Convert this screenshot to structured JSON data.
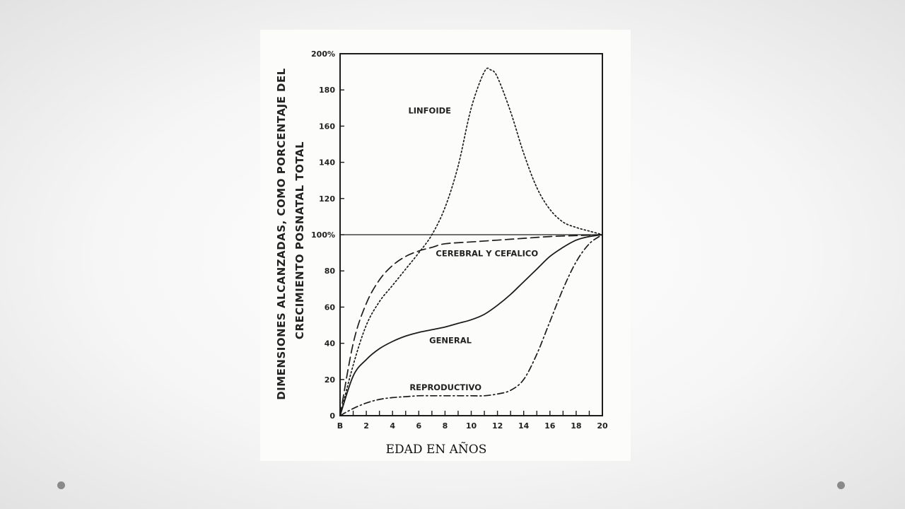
{
  "chart_data": {
    "type": "line",
    "xlabel": "EDAD EN AÑOS",
    "ylabel": [
      "DIMENSIONES ALCANZADAS, COMO PORCENTAJE DEL",
      "CRECIMIENTO POSNATAL TOTAL"
    ],
    "xlim": [
      0,
      20
    ],
    "ylim": [
      0,
      200
    ],
    "x_ticks": [
      {
        "value": 0,
        "label": "B"
      },
      {
        "value": 2,
        "label": "2"
      },
      {
        "value": 4,
        "label": "4"
      },
      {
        "value": 6,
        "label": "6"
      },
      {
        "value": 8,
        "label": "8"
      },
      {
        "value": 10,
        "label": "10"
      },
      {
        "value": 12,
        "label": "12"
      },
      {
        "value": 14,
        "label": "14"
      },
      {
        "value": 16,
        "label": "16"
      },
      {
        "value": 18,
        "label": "18"
      },
      {
        "value": 20,
        "label": "20"
      }
    ],
    "y_ticks": [
      {
        "value": 0,
        "label": "0"
      },
      {
        "value": 20,
        "label": "20"
      },
      {
        "value": 40,
        "label": "40"
      },
      {
        "value": 60,
        "label": "60"
      },
      {
        "value": 80,
        "label": "80"
      },
      {
        "value": 100,
        "label": "100%"
      },
      {
        "value": 120,
        "label": "120"
      },
      {
        "value": 140,
        "label": "140"
      },
      {
        "value": 160,
        "label": "160"
      },
      {
        "value": 180,
        "label": "180"
      },
      {
        "value": 200,
        "label": "200%"
      }
    ],
    "reference_line": 100,
    "grid": false,
    "series": [
      {
        "name": "LINFOIDE",
        "style": "dotted",
        "label_at": [
          5.2,
          167
        ],
        "x": [
          0,
          1,
          2,
          3,
          4,
          5,
          6,
          7,
          8,
          9,
          10,
          11,
          11.5,
          12,
          13,
          14,
          15,
          16,
          17,
          18,
          19,
          20
        ],
        "y": [
          0,
          28,
          50,
          63,
          72,
          81,
          90,
          100,
          115,
          138,
          170,
          190,
          191,
          187,
          168,
          145,
          126,
          114,
          107,
          104,
          102,
          100
        ]
      },
      {
        "name": "CEREBRAL Y CEFALICO",
        "style": "long-dash",
        "label_at": [
          7.3,
          88
        ],
        "x": [
          0,
          1,
          2,
          3,
          4,
          5,
          6,
          7,
          8,
          10,
          12,
          14,
          16,
          18,
          20
        ],
        "y": [
          0,
          40,
          62,
          75,
          83,
          88,
          91,
          93,
          95,
          96,
          97,
          98,
          99,
          99.5,
          100
        ]
      },
      {
        "name": "GENERAL",
        "style": "solid",
        "label_at": [
          6.8,
          40
        ],
        "x": [
          0,
          1,
          2,
          3,
          4,
          5,
          6,
          7,
          8,
          9,
          10,
          11,
          12,
          13,
          14,
          15,
          16,
          17,
          18,
          19,
          20
        ],
        "y": [
          0,
          22,
          31,
          37,
          41,
          44,
          46,
          47.5,
          49,
          51,
          53,
          56,
          61,
          67,
          74,
          81,
          88,
          93,
          97,
          99,
          100
        ]
      },
      {
        "name": "REPRODUCTIVO",
        "style": "dash-dot",
        "label_at": [
          5.3,
          14
        ],
        "x": [
          0,
          1,
          2,
          3,
          4,
          5,
          6,
          7,
          8,
          9,
          10,
          11,
          12,
          13,
          14,
          15,
          16,
          17,
          18,
          19,
          20
        ],
        "y": [
          0,
          4,
          7,
          9,
          10,
          10.5,
          11,
          11,
          11,
          11,
          11,
          11,
          12,
          14,
          20,
          34,
          52,
          70,
          85,
          95,
          100
        ]
      }
    ]
  },
  "colors": {
    "ink": "#1c1c1c",
    "scan_background": "#fcfcfa",
    "slide_background": "#f6f6f6",
    "bullet": "#8a8a8a"
  }
}
